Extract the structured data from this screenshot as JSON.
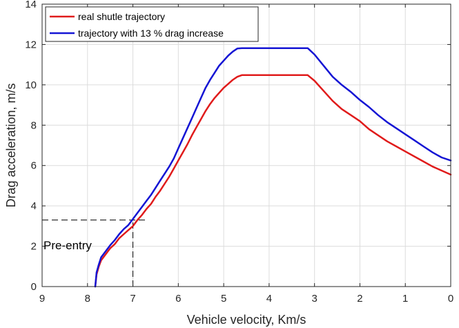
{
  "chart_data": {
    "type": "line",
    "title": "",
    "xlabel": "Vehicle velocity, Km/s",
    "ylabel": "Drag acceleration, m/s",
    "xlim": [
      9,
      0
    ],
    "ylim": [
      0,
      14
    ],
    "x_reversed": true,
    "xticks": [
      9,
      8,
      7,
      6,
      5,
      4,
      3,
      2,
      1,
      0
    ],
    "yticks": [
      0,
      2,
      4,
      6,
      8,
      10,
      12,
      14
    ],
    "xtick_labels": [
      "9",
      "8",
      "7",
      "6",
      "5",
      "4",
      "3",
      "2",
      "1",
      "0"
    ],
    "ytick_labels": [
      "0",
      "2",
      "4",
      "6",
      "8",
      "10",
      "12",
      "14"
    ],
    "grid": true,
    "legend_position": "top-left",
    "series": [
      {
        "name": "real shutle trajectory",
        "color": "#e01b1b",
        "x": [
          7.83,
          7.8,
          7.75,
          7.7,
          7.6,
          7.5,
          7.4,
          7.3,
          7.2,
          7.1,
          7.0,
          6.9,
          6.8,
          6.7,
          6.6,
          6.5,
          6.4,
          6.3,
          6.2,
          6.1,
          6.0,
          5.9,
          5.8,
          5.7,
          5.6,
          5.5,
          5.4,
          5.3,
          5.2,
          5.1,
          5.0,
          4.9,
          4.8,
          4.7,
          4.6,
          4.0,
          3.5,
          3.15,
          3.0,
          2.8,
          2.6,
          2.4,
          2.2,
          2.0,
          1.8,
          1.6,
          1.4,
          1.2,
          1.0,
          0.8,
          0.6,
          0.4,
          0.2,
          0.0
        ],
        "y": [
          0,
          0.6,
          1.0,
          1.3,
          1.6,
          1.9,
          2.1,
          2.4,
          2.6,
          2.8,
          3.0,
          3.3,
          3.55,
          3.85,
          4.1,
          4.45,
          4.75,
          5.1,
          5.45,
          5.85,
          6.25,
          6.65,
          7.05,
          7.5,
          7.9,
          8.3,
          8.7,
          9.05,
          9.35,
          9.6,
          9.85,
          10.05,
          10.25,
          10.4,
          10.48,
          10.48,
          10.48,
          10.48,
          10.2,
          9.7,
          9.2,
          8.8,
          8.5,
          8.2,
          7.8,
          7.5,
          7.2,
          6.95,
          6.7,
          6.45,
          6.2,
          5.95,
          5.75,
          5.55
        ]
      },
      {
        "name": "trajectory with 13 % drag increase",
        "color": "#1414d4",
        "x": [
          7.83,
          7.8,
          7.75,
          7.7,
          7.6,
          7.5,
          7.4,
          7.3,
          7.2,
          7.1,
          7.0,
          6.9,
          6.8,
          6.7,
          6.6,
          6.5,
          6.4,
          6.3,
          6.2,
          6.1,
          6.0,
          5.9,
          5.8,
          5.7,
          5.6,
          5.5,
          5.4,
          5.3,
          5.2,
          5.1,
          5.0,
          4.9,
          4.8,
          4.7,
          4.6,
          4.0,
          3.5,
          3.15,
          3.0,
          2.8,
          2.6,
          2.4,
          2.2,
          2.0,
          1.8,
          1.6,
          1.4,
          1.2,
          1.0,
          0.8,
          0.6,
          0.4,
          0.2,
          0.0
        ],
        "y": [
          0,
          0.7,
          1.1,
          1.45,
          1.75,
          2.05,
          2.3,
          2.6,
          2.85,
          3.05,
          3.35,
          3.65,
          3.95,
          4.25,
          4.55,
          4.9,
          5.25,
          5.6,
          5.95,
          6.35,
          6.85,
          7.35,
          7.85,
          8.35,
          8.85,
          9.35,
          9.85,
          10.25,
          10.6,
          10.95,
          11.2,
          11.45,
          11.65,
          11.8,
          11.82,
          11.82,
          11.82,
          11.82,
          11.5,
          10.95,
          10.4,
          10.0,
          9.65,
          9.25,
          8.9,
          8.5,
          8.15,
          7.85,
          7.55,
          7.25,
          6.95,
          6.65,
          6.4,
          6.25
        ]
      }
    ],
    "reference_lines": {
      "style": "dashed",
      "color": "#000000",
      "horizontal_y": 3.3,
      "horizontal_x_from": 9,
      "horizontal_x_to": 6.7,
      "vertical_x": 7.0,
      "vertical_y_from": 0,
      "vertical_y_to": 3.3
    },
    "annotations": [
      {
        "text": "Pre-entry",
        "x": 9,
        "y": 2.05
      }
    ]
  }
}
